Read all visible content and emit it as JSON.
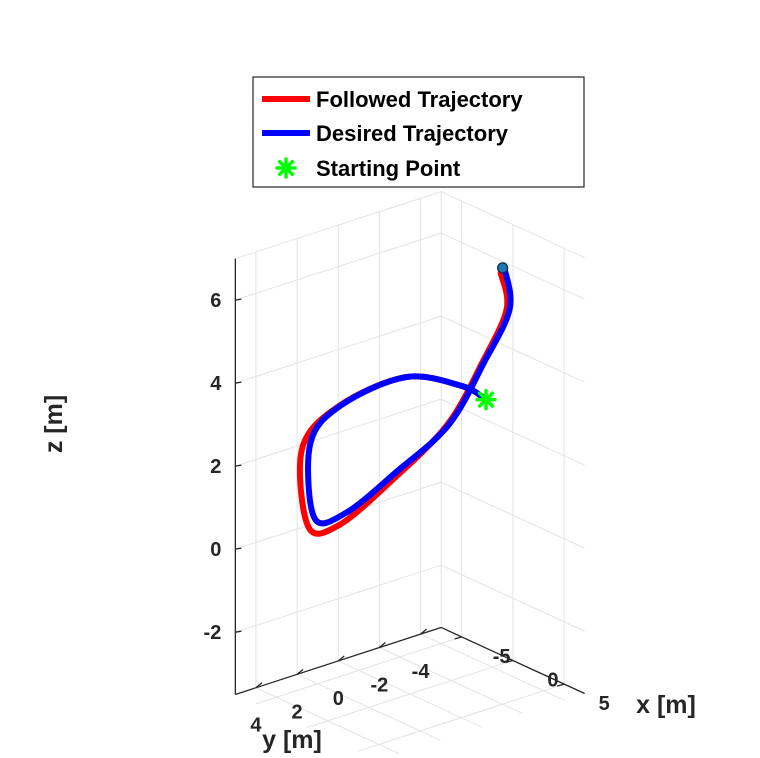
{
  "chart_data": {
    "type": "line",
    "projection": "3d",
    "title": "",
    "xlabel": "x [m]",
    "ylabel": "y [m]",
    "zlabel": "z [m]",
    "xlim": [
      -7,
      7
    ],
    "ylim": [
      -5,
      5
    ],
    "zlim": [
      -3.5,
      7
    ],
    "xticks": [
      "-5",
      "0",
      "5"
    ],
    "yticks": [
      "4",
      "2",
      "0",
      "-2",
      "-4"
    ],
    "zticks": [
      "6",
      "4",
      "2",
      "0",
      "-2"
    ],
    "grid": true,
    "legend_position": "top",
    "series": [
      {
        "name": "Followed Trajectory",
        "color": "#ff0000",
        "points": [
          {
            "x": -0.2,
            "y": -4.5,
            "z": 5.9
          },
          {
            "x": 2.0,
            "y": -3.7,
            "z": 5.4
          },
          {
            "x": 3.6,
            "y": -1.7,
            "z": 4.6
          },
          {
            "x": 4.2,
            "y": 0.3,
            "z": 3.5
          },
          {
            "x": 3.2,
            "y": 2.5,
            "z": 2.4
          },
          {
            "x": 0.9,
            "y": 3.9,
            "z": 1.3
          },
          {
            "x": -1.7,
            "y": 4.1,
            "z": 1.0
          },
          {
            "x": -3.9,
            "y": 3.3,
            "z": 2.5
          },
          {
            "x": -4.1,
            "y": 1.4,
            "z": 3.2
          },
          {
            "x": -2.4,
            "y": -1.0,
            "z": 3.7
          },
          {
            "x": 0.5,
            "y": -2.3,
            "z": 3.6
          },
          {
            "x": 2.6,
            "y": -2.4,
            "z": 3.5
          }
        ]
      },
      {
        "name": "Desired Trajectory",
        "color": "#0000ff",
        "points": [
          {
            "x": 0.0,
            "y": -4.6,
            "z": 6.0
          },
          {
            "x": 2.1,
            "y": -3.8,
            "z": 5.4
          },
          {
            "x": 3.6,
            "y": -1.8,
            "z": 4.6
          },
          {
            "x": 4.2,
            "y": 0.2,
            "z": 3.5
          },
          {
            "x": 3.3,
            "y": 2.3,
            "z": 2.6
          },
          {
            "x": 1.2,
            "y": 3.7,
            "z": 1.6
          },
          {
            "x": -1.5,
            "y": 3.9,
            "z": 1.2
          },
          {
            "x": -3.7,
            "y": 3.0,
            "z": 2.6
          },
          {
            "x": -4.1,
            "y": 1.3,
            "z": 3.2
          },
          {
            "x": -2.4,
            "y": -1.0,
            "z": 3.7
          },
          {
            "x": 0.5,
            "y": -2.3,
            "z": 3.6
          },
          {
            "x": 2.6,
            "y": -2.4,
            "z": 3.5
          }
        ]
      }
    ],
    "markers": [
      {
        "name": "Starting Point",
        "symbol": "asterisk",
        "color": "#00ff00",
        "x": 2.6,
        "y": -2.4,
        "z": 3.5
      }
    ],
    "end_marker": {
      "symbol": "circle",
      "color": "#1f77b4",
      "x": -0.2,
      "y": -4.6,
      "z": 6.0
    },
    "legend": [
      {
        "label": "Followed Trajectory",
        "color": "#ff0000",
        "symbol": "line"
      },
      {
        "label": "Desired Trajectory",
        "color": "#0000ff",
        "symbol": "line"
      },
      {
        "label": "Starting Point",
        "color": "#00ff00",
        "symbol": "asterisk"
      }
    ]
  }
}
